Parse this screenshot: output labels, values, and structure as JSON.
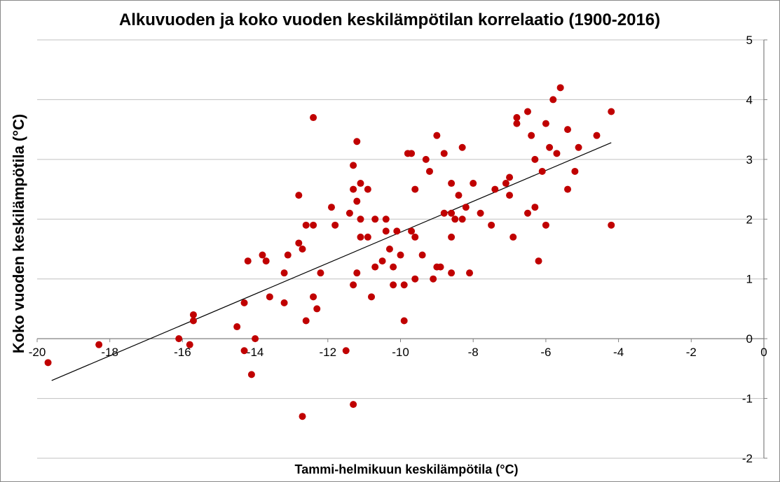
{
  "chart_data": {
    "type": "scatter",
    "title": "Alkuvuoden ja koko vuoden keskilämpötilan korrelaatio (1900-2016)",
    "xlabel": "Tammi-helmikuun  keskilämpötila  (°C)",
    "ylabel": "Koko vuoden keskilämpötila (°C)",
    "xlim": [
      -20,
      0
    ],
    "ylim": [
      -2,
      5
    ],
    "x_ticks": [
      -20,
      -18,
      -16,
      -14,
      -12,
      -10,
      -8,
      -6,
      -4,
      -2,
      0
    ],
    "y_ticks": [
      -2,
      -1,
      0,
      1,
      2,
      3,
      4,
      5
    ],
    "x_tick_labels": [
      "-20",
      "-18",
      "-16",
      "-14",
      "-12",
      "-10",
      "-8",
      "-6",
      "-4",
      "-2",
      "0"
    ],
    "y_tick_labels": [
      "-2",
      "-1",
      "0",
      "1",
      "2",
      "3",
      "4",
      "5"
    ],
    "grid": "horizontal",
    "legend": "none",
    "marker_color": "#c00000",
    "trendline": {
      "color": "#000000",
      "x": [
        -19.6,
        -4.2
      ],
      "y": [
        -0.7,
        3.28
      ]
    },
    "series": [
      {
        "points": [
          [
            -19.7,
            -0.4
          ],
          [
            -18.3,
            -0.1
          ],
          [
            -16.1,
            0.0
          ],
          [
            -15.8,
            -0.1
          ],
          [
            -15.7,
            0.3
          ],
          [
            -15.7,
            0.4
          ],
          [
            -14.5,
            0.2
          ],
          [
            -14.3,
            -0.2
          ],
          [
            -14.3,
            0.6
          ],
          [
            -14.2,
            1.3
          ],
          [
            -14.1,
            -0.6
          ],
          [
            -14.0,
            0.0
          ],
          [
            -13.8,
            1.4
          ],
          [
            -13.7,
            1.3
          ],
          [
            -13.6,
            0.7
          ],
          [
            -13.2,
            1.1
          ],
          [
            -13.2,
            0.6
          ],
          [
            -13.1,
            1.4
          ],
          [
            -12.8,
            2.4
          ],
          [
            -12.8,
            1.6
          ],
          [
            -12.7,
            1.5
          ],
          [
            -12.7,
            -1.3
          ],
          [
            -12.6,
            1.9
          ],
          [
            -12.6,
            0.3
          ],
          [
            -12.4,
            3.7
          ],
          [
            -12.4,
            1.9
          ],
          [
            -12.4,
            0.7
          ],
          [
            -12.3,
            0.5
          ],
          [
            -12.2,
            1.1
          ],
          [
            -11.9,
            2.2
          ],
          [
            -11.8,
            1.9
          ],
          [
            -11.5,
            -0.2
          ],
          [
            -11.4,
            2.1
          ],
          [
            -11.3,
            2.9
          ],
          [
            -11.3,
            2.5
          ],
          [
            -11.3,
            0.9
          ],
          [
            -11.3,
            -1.1
          ],
          [
            -11.2,
            3.3
          ],
          [
            -11.2,
            2.3
          ],
          [
            -11.2,
            1.1
          ],
          [
            -11.1,
            2.6
          ],
          [
            -11.1,
            2.0
          ],
          [
            -11.1,
            1.7
          ],
          [
            -10.9,
            2.5
          ],
          [
            -10.9,
            1.7
          ],
          [
            -10.8,
            0.7
          ],
          [
            -10.7,
            2.0
          ],
          [
            -10.7,
            1.2
          ],
          [
            -10.5,
            1.3
          ],
          [
            -10.4,
            2.0
          ],
          [
            -10.4,
            1.8
          ],
          [
            -10.3,
            1.5
          ],
          [
            -10.2,
            1.2
          ],
          [
            -10.2,
            0.9
          ],
          [
            -10.1,
            1.8
          ],
          [
            -10.0,
            1.4
          ],
          [
            -9.9,
            0.9
          ],
          [
            -9.9,
            0.3
          ],
          [
            -9.8,
            3.1
          ],
          [
            -9.7,
            3.1
          ],
          [
            -9.7,
            1.8
          ],
          [
            -9.6,
            2.5
          ],
          [
            -9.6,
            1.7
          ],
          [
            -9.6,
            1.0
          ],
          [
            -9.4,
            1.4
          ],
          [
            -9.3,
            3.0
          ],
          [
            -9.2,
            2.8
          ],
          [
            -9.1,
            1.0
          ],
          [
            -9.0,
            3.4
          ],
          [
            -9.0,
            1.2
          ],
          [
            -8.9,
            1.2
          ],
          [
            -8.8,
            3.1
          ],
          [
            -8.8,
            2.1
          ],
          [
            -8.6,
            2.6
          ],
          [
            -8.6,
            2.1
          ],
          [
            -8.6,
            1.7
          ],
          [
            -8.6,
            1.1
          ],
          [
            -8.5,
            2.0
          ],
          [
            -8.4,
            2.4
          ],
          [
            -8.3,
            3.2
          ],
          [
            -8.3,
            2.0
          ],
          [
            -8.2,
            2.2
          ],
          [
            -8.1,
            1.1
          ],
          [
            -8.0,
            2.6
          ],
          [
            -7.8,
            2.1
          ],
          [
            -7.5,
            1.9
          ],
          [
            -7.4,
            2.5
          ],
          [
            -7.1,
            2.6
          ],
          [
            -7.0,
            2.7
          ],
          [
            -7.0,
            2.4
          ],
          [
            -6.9,
            1.7
          ],
          [
            -6.8,
            3.7
          ],
          [
            -6.8,
            3.6
          ],
          [
            -6.5,
            3.8
          ],
          [
            -6.5,
            2.1
          ],
          [
            -6.4,
            3.4
          ],
          [
            -6.3,
            3.0
          ],
          [
            -6.3,
            2.2
          ],
          [
            -6.2,
            1.3
          ],
          [
            -6.1,
            2.8
          ],
          [
            -6.0,
            3.6
          ],
          [
            -6.0,
            1.9
          ],
          [
            -5.9,
            3.2
          ],
          [
            -5.8,
            4.0
          ],
          [
            -5.7,
            3.1
          ],
          [
            -5.6,
            4.2
          ],
          [
            -5.4,
            3.5
          ],
          [
            -5.4,
            2.5
          ],
          [
            -5.2,
            2.8
          ],
          [
            -5.1,
            3.2
          ],
          [
            -4.6,
            3.4
          ],
          [
            -4.2,
            3.8
          ],
          [
            -4.2,
            1.9
          ]
        ]
      }
    ]
  }
}
